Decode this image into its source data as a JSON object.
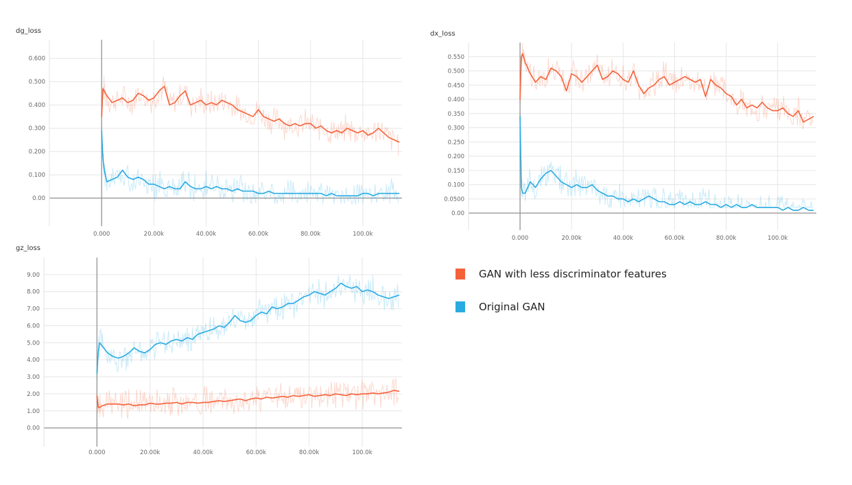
{
  "chart_data": [
    {
      "id": "dg",
      "type": "line",
      "title": "dg_loss",
      "xlabel": "",
      "ylabel": "",
      "x_ticks": [
        "0.000",
        "20.00k",
        "40.00k",
        "60.00k",
        "80.00k",
        "100.0k"
      ],
      "y_ticks": [
        "0.600",
        "0.500",
        "0.400",
        "0.300",
        "0.200",
        "0.100",
        "0.00"
      ],
      "xlim": [
        -20000,
        115000
      ],
      "ylim": [
        -0.12,
        0.68
      ],
      "series": [
        {
          "name": "GAN with less discriminator features",
          "color": "#f4623a",
          "x": [
            0,
            500,
            1000,
            2000,
            4000,
            6000,
            8000,
            10000,
            12000,
            14000,
            16000,
            18000,
            20000,
            22000,
            24000,
            26000,
            28000,
            30000,
            32000,
            34000,
            36000,
            38000,
            40000,
            42000,
            44000,
            46000,
            48000,
            50000,
            52000,
            54000,
            56000,
            58000,
            60000,
            62000,
            64000,
            66000,
            68000,
            70000,
            72000,
            74000,
            76000,
            78000,
            80000,
            82000,
            84000,
            86000,
            88000,
            90000,
            92000,
            94000,
            96000,
            98000,
            100000,
            102000,
            104000,
            106000,
            108000,
            110000,
            112000,
            114000
          ],
          "values": [
            0.35,
            0.47,
            0.46,
            0.44,
            0.41,
            0.42,
            0.43,
            0.41,
            0.42,
            0.45,
            0.44,
            0.42,
            0.43,
            0.46,
            0.48,
            0.4,
            0.41,
            0.44,
            0.46,
            0.4,
            0.41,
            0.42,
            0.4,
            0.41,
            0.4,
            0.42,
            0.41,
            0.4,
            0.38,
            0.37,
            0.36,
            0.35,
            0.38,
            0.35,
            0.34,
            0.33,
            0.34,
            0.32,
            0.31,
            0.32,
            0.31,
            0.32,
            0.32,
            0.3,
            0.31,
            0.29,
            0.28,
            0.29,
            0.28,
            0.3,
            0.29,
            0.28,
            0.29,
            0.27,
            0.28,
            0.3,
            0.28,
            0.26,
            0.25,
            0.24
          ]
        },
        {
          "name": "Original GAN",
          "color": "#29abe2",
          "x": [
            0,
            500,
            1000,
            2000,
            4000,
            6000,
            8000,
            10000,
            12000,
            14000,
            16000,
            18000,
            20000,
            22000,
            24000,
            26000,
            28000,
            30000,
            32000,
            34000,
            36000,
            38000,
            40000,
            42000,
            44000,
            46000,
            48000,
            50000,
            52000,
            54000,
            56000,
            58000,
            60000,
            62000,
            64000,
            66000,
            68000,
            70000,
            72000,
            74000,
            76000,
            78000,
            80000,
            82000,
            84000,
            86000,
            88000,
            90000,
            92000,
            94000,
            96000,
            98000,
            100000,
            102000,
            104000,
            106000,
            108000,
            110000,
            112000,
            114000
          ],
          "values": [
            0.29,
            0.17,
            0.12,
            0.07,
            0.08,
            0.09,
            0.12,
            0.09,
            0.08,
            0.09,
            0.08,
            0.06,
            0.06,
            0.05,
            0.04,
            0.05,
            0.04,
            0.04,
            0.07,
            0.05,
            0.04,
            0.04,
            0.05,
            0.04,
            0.05,
            0.04,
            0.04,
            0.03,
            0.04,
            0.03,
            0.03,
            0.03,
            0.02,
            0.02,
            0.03,
            0.02,
            0.02,
            0.02,
            0.02,
            0.02,
            0.02,
            0.02,
            0.02,
            0.02,
            0.02,
            0.01,
            0.02,
            0.01,
            0.01,
            0.01,
            0.01,
            0.01,
            0.02,
            0.02,
            0.01,
            0.02,
            0.02,
            0.02,
            0.02,
            0.02
          ]
        }
      ]
    },
    {
      "id": "dx",
      "type": "line",
      "title": "dx_loss",
      "xlabel": "",
      "ylabel": "",
      "x_ticks": [
        "0.000",
        "20.00k",
        "40.00k",
        "60.00k",
        "80.00k",
        "100.0k"
      ],
      "y_ticks": [
        "0.550",
        "0.500",
        "0.450",
        "0.400",
        "0.350",
        "0.300",
        "0.250",
        "0.200",
        "0.150",
        "0.100",
        "0.0500",
        "0.00"
      ],
      "xlim": [
        -20000,
        115000
      ],
      "ylim": [
        -0.06,
        0.6
      ],
      "series": [
        {
          "name": "GAN with less discriminator features",
          "color": "#f4623a",
          "x": [
            0,
            500,
            1000,
            2000,
            4000,
            6000,
            8000,
            10000,
            12000,
            14000,
            16000,
            18000,
            20000,
            22000,
            24000,
            26000,
            28000,
            30000,
            32000,
            34000,
            36000,
            38000,
            40000,
            42000,
            44000,
            46000,
            48000,
            50000,
            52000,
            54000,
            56000,
            58000,
            60000,
            62000,
            64000,
            66000,
            68000,
            70000,
            72000,
            74000,
            76000,
            78000,
            80000,
            82000,
            84000,
            86000,
            88000,
            90000,
            92000,
            94000,
            96000,
            98000,
            100000,
            102000,
            104000,
            106000,
            108000,
            110000,
            112000,
            114000
          ],
          "values": [
            0.4,
            0.55,
            0.56,
            0.53,
            0.49,
            0.46,
            0.48,
            0.47,
            0.51,
            0.5,
            0.48,
            0.43,
            0.49,
            0.48,
            0.46,
            0.48,
            0.5,
            0.52,
            0.47,
            0.48,
            0.5,
            0.49,
            0.47,
            0.46,
            0.5,
            0.45,
            0.42,
            0.44,
            0.45,
            0.47,
            0.48,
            0.45,
            0.46,
            0.47,
            0.48,
            0.47,
            0.46,
            0.47,
            0.41,
            0.47,
            0.45,
            0.44,
            0.42,
            0.41,
            0.38,
            0.4,
            0.37,
            0.38,
            0.37,
            0.39,
            0.37,
            0.36,
            0.36,
            0.37,
            0.35,
            0.34,
            0.36,
            0.32,
            0.33,
            0.34
          ]
        },
        {
          "name": "Original GAN",
          "color": "#29abe2",
          "x": [
            0,
            500,
            1000,
            2000,
            4000,
            6000,
            8000,
            10000,
            12000,
            14000,
            16000,
            18000,
            20000,
            22000,
            24000,
            26000,
            28000,
            30000,
            32000,
            34000,
            36000,
            38000,
            40000,
            42000,
            44000,
            46000,
            48000,
            50000,
            52000,
            54000,
            56000,
            58000,
            60000,
            62000,
            64000,
            66000,
            68000,
            70000,
            72000,
            74000,
            76000,
            78000,
            80000,
            82000,
            84000,
            86000,
            88000,
            90000,
            92000,
            94000,
            96000,
            98000,
            100000,
            102000,
            104000,
            106000,
            108000,
            110000,
            112000,
            114000
          ],
          "values": [
            0.34,
            0.09,
            0.07,
            0.07,
            0.11,
            0.09,
            0.12,
            0.14,
            0.15,
            0.13,
            0.11,
            0.1,
            0.09,
            0.1,
            0.09,
            0.09,
            0.1,
            0.08,
            0.07,
            0.06,
            0.06,
            0.05,
            0.05,
            0.04,
            0.05,
            0.04,
            0.05,
            0.06,
            0.05,
            0.04,
            0.04,
            0.03,
            0.03,
            0.04,
            0.03,
            0.04,
            0.03,
            0.03,
            0.04,
            0.03,
            0.03,
            0.02,
            0.03,
            0.02,
            0.03,
            0.02,
            0.02,
            0.03,
            0.02,
            0.02,
            0.02,
            0.02,
            0.02,
            0.01,
            0.02,
            0.01,
            0.01,
            0.02,
            0.01,
            0.01
          ]
        }
      ]
    },
    {
      "id": "gz",
      "type": "line",
      "title": "gz_loss",
      "xlabel": "",
      "ylabel": "",
      "x_ticks": [
        "0.000",
        "20.00k",
        "40.00k",
        "60.00k",
        "80.00k",
        "100.0k"
      ],
      "y_ticks": [
        "9.00",
        "8.00",
        "7.00",
        "6.00",
        "5.00",
        "4.00",
        "3.00",
        "2.00",
        "1.00",
        "0.00"
      ],
      "xlim": [
        -20000,
        115000
      ],
      "ylim": [
        -1.1,
        10.0
      ],
      "series": [
        {
          "name": "GAN with less discriminator features",
          "color": "#f4623a",
          "x": [
            0,
            500,
            1000,
            2000,
            4000,
            6000,
            8000,
            10000,
            12000,
            14000,
            16000,
            18000,
            20000,
            22000,
            24000,
            26000,
            28000,
            30000,
            32000,
            34000,
            36000,
            38000,
            40000,
            42000,
            44000,
            46000,
            48000,
            50000,
            52000,
            54000,
            56000,
            58000,
            60000,
            62000,
            64000,
            66000,
            68000,
            70000,
            72000,
            74000,
            76000,
            78000,
            80000,
            82000,
            84000,
            86000,
            88000,
            90000,
            92000,
            94000,
            96000,
            98000,
            100000,
            102000,
            104000,
            106000,
            108000,
            110000,
            112000,
            114000
          ],
          "values": [
            1.9,
            1.2,
            1.2,
            1.3,
            1.4,
            1.4,
            1.4,
            1.35,
            1.4,
            1.3,
            1.35,
            1.35,
            1.45,
            1.4,
            1.4,
            1.45,
            1.45,
            1.5,
            1.4,
            1.5,
            1.5,
            1.45,
            1.5,
            1.5,
            1.55,
            1.6,
            1.55,
            1.6,
            1.65,
            1.7,
            1.6,
            1.7,
            1.75,
            1.7,
            1.8,
            1.75,
            1.8,
            1.85,
            1.8,
            1.9,
            1.85,
            1.9,
            1.95,
            1.85,
            1.9,
            1.95,
            1.9,
            2.0,
            1.95,
            1.9,
            2.0,
            1.95,
            2.0,
            2.0,
            2.05,
            2.0,
            2.05,
            2.1,
            2.2,
            2.15
          ]
        },
        {
          "name": "Original GAN",
          "color": "#29abe2",
          "x": [
            0,
            500,
            1000,
            2000,
            4000,
            6000,
            8000,
            10000,
            12000,
            14000,
            16000,
            18000,
            20000,
            22000,
            24000,
            26000,
            28000,
            30000,
            32000,
            34000,
            36000,
            38000,
            40000,
            42000,
            44000,
            46000,
            48000,
            50000,
            52000,
            54000,
            56000,
            58000,
            60000,
            62000,
            64000,
            66000,
            68000,
            70000,
            72000,
            74000,
            76000,
            78000,
            80000,
            82000,
            84000,
            86000,
            88000,
            90000,
            92000,
            94000,
            96000,
            98000,
            100000,
            102000,
            104000,
            106000,
            108000,
            110000,
            112000,
            114000
          ],
          "values": [
            3.2,
            4.5,
            5.0,
            4.8,
            4.4,
            4.2,
            4.1,
            4.2,
            4.4,
            4.7,
            4.5,
            4.4,
            4.6,
            4.9,
            5.0,
            4.9,
            5.1,
            5.2,
            5.1,
            5.3,
            5.2,
            5.5,
            5.6,
            5.7,
            5.8,
            6.0,
            5.9,
            6.2,
            6.6,
            6.3,
            6.2,
            6.3,
            6.6,
            6.8,
            6.7,
            7.1,
            7.0,
            7.1,
            7.3,
            7.3,
            7.5,
            7.7,
            7.8,
            8.0,
            7.9,
            7.8,
            8.0,
            8.2,
            8.5,
            8.3,
            8.2,
            8.3,
            8.0,
            8.1,
            8.0,
            7.8,
            7.7,
            7.6,
            7.7,
            7.8
          ]
        }
      ]
    }
  ],
  "legend": {
    "items": [
      {
        "label": "GAN with less discriminator features",
        "color": "#f4623a"
      },
      {
        "label": "Original GAN",
        "color": "#29abe2"
      }
    ]
  }
}
